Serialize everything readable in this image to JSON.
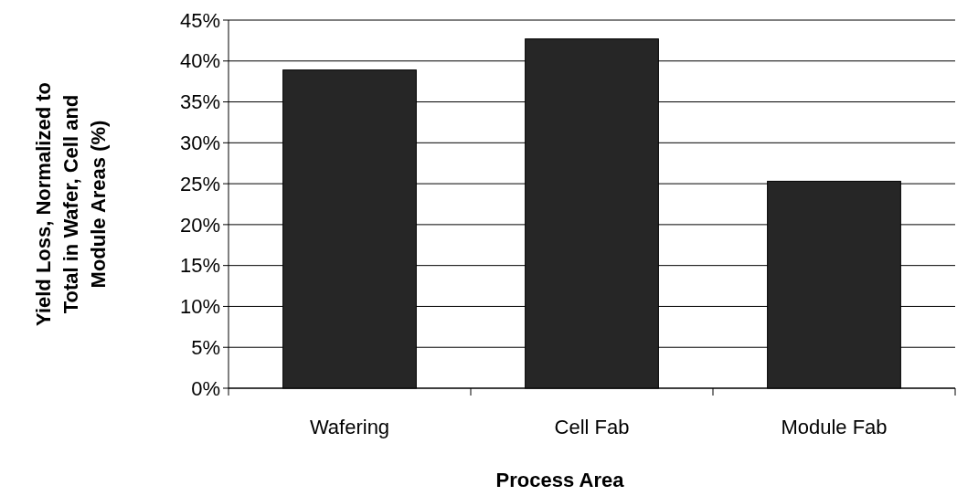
{
  "chart_data": {
    "type": "bar",
    "xlabel": "Process Area",
    "ylabel": "Yield Loss, Normalized to Total in Wafer, Cell and Module Areas  (%)",
    "categories": [
      "Wafering",
      "Cell Fab",
      "Module Fab"
    ],
    "values": [
      38.9,
      42.7,
      25.3
    ],
    "color": "#262626",
    "ylim": [
      0,
      45
    ],
    "yticks": [
      {
        "value": 0,
        "label": "0%"
      },
      {
        "value": 5,
        "label": "5%"
      },
      {
        "value": 10,
        "label": "10%"
      },
      {
        "value": 15,
        "label": "15%"
      },
      {
        "value": 20,
        "label": "20%"
      },
      {
        "value": 25,
        "label": "25%"
      },
      {
        "value": 30,
        "label": "30%"
      },
      {
        "value": 35,
        "label": "35%"
      },
      {
        "value": 40,
        "label": "40%"
      },
      {
        "value": 45,
        "label": "45%"
      }
    ],
    "grid": "y"
  }
}
